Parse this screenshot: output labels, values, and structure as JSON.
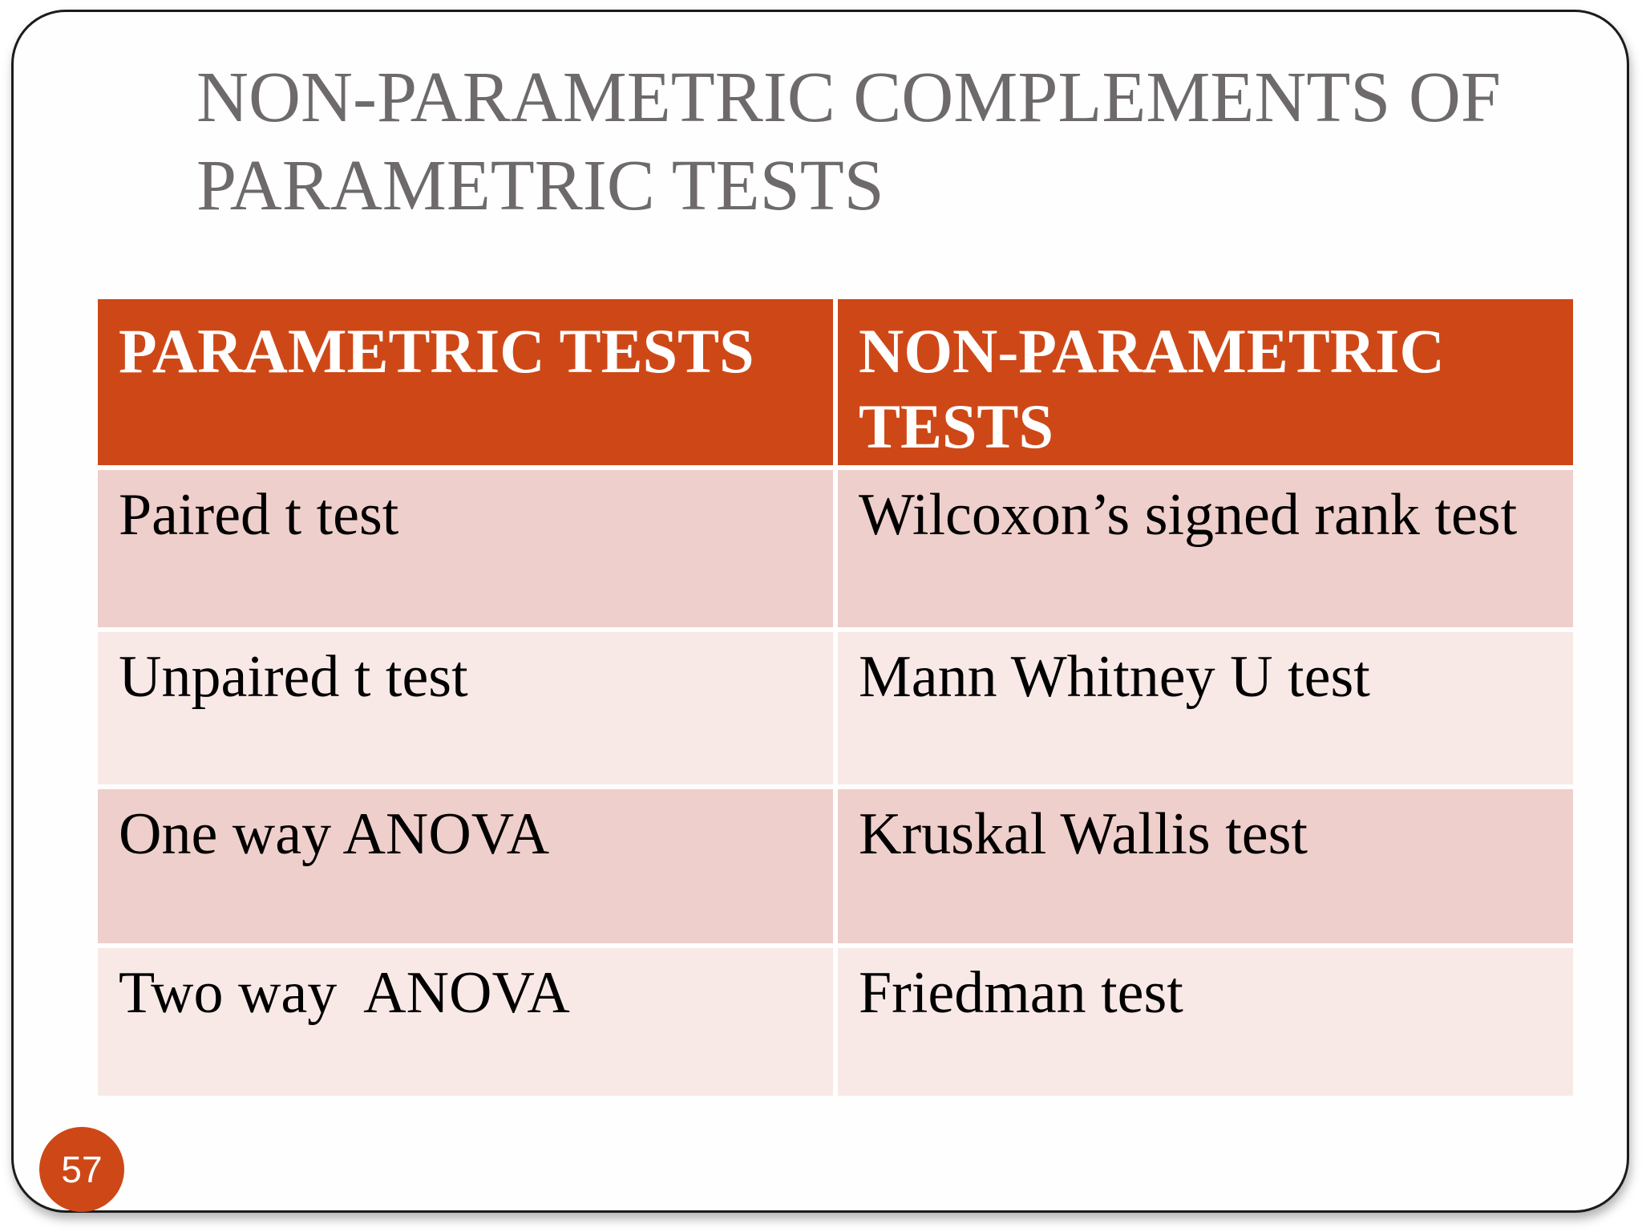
{
  "slide": {
    "title": {
      "line1": "NON-PARAMETRIC COMPLEMENTS OF",
      "line2": "PARAMETRIC TESTS"
    },
    "page_number": "57",
    "table": {
      "headers": [
        "PARAMETRIC TESTS",
        "NON-PARAMETRIC TESTS"
      ],
      "rows": [
        [
          "Paired t test",
          "Wilcoxon’s signed rank test"
        ],
        [
          "Unpaired t test",
          "Mann Whitney U test"
        ],
        [
          "One way ANOVA",
          "Kruskal Wallis test"
        ],
        [
          "Two way  ANOVA",
          "Friedman test"
        ]
      ]
    },
    "colors": {
      "header_bg": "#CE4817",
      "header_text": "#FFFFFF",
      "row_dark": "#EFCFCB",
      "row_light": "#F8E9E7",
      "title_text": "#6E6A6B",
      "badge_bg": "#CE4817",
      "border": "#1B1B1B"
    }
  }
}
